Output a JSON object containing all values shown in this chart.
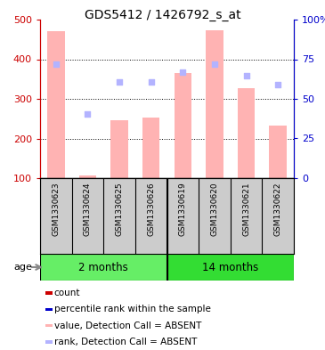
{
  "title": "GDS5412 / 1426792_s_at",
  "samples": [
    "GSM1330623",
    "GSM1330624",
    "GSM1330625",
    "GSM1330626",
    "GSM1330619",
    "GSM1330620",
    "GSM1330621",
    "GSM1330622"
  ],
  "groups": [
    {
      "label": "2 months",
      "indices": [
        0,
        1,
        2,
        3
      ],
      "color": "#66ee66"
    },
    {
      "label": "14 months",
      "indices": [
        4,
        5,
        6,
        7
      ],
      "color": "#33dd33"
    }
  ],
  "bar_values": [
    470,
    107,
    247,
    253,
    365,
    472,
    327,
    233
  ],
  "bar_color": "#ffb3b3",
  "rank_values": [
    388,
    262,
    343,
    342,
    368,
    388,
    358,
    335
  ],
  "rank_color": "#b3b3ff",
  "ylim_left": [
    100,
    500
  ],
  "ylim_right": [
    0,
    100
  ],
  "yticks_left": [
    100,
    200,
    300,
    400,
    500
  ],
  "ytick_labels_left": [
    "100",
    "200",
    "300",
    "400",
    "500"
  ],
  "yticks_right": [
    0,
    25,
    50,
    75,
    100
  ],
  "ytick_labels_right": [
    "0",
    "25",
    "50",
    "75",
    "100%"
  ],
  "left_axis_color": "#cc0000",
  "right_axis_color": "#0000cc",
  "background_color": "#ffffff",
  "sample_bg_color": "#cccccc",
  "legend_data": [
    {
      "color": "#cc0000",
      "label": "count"
    },
    {
      "color": "#0000cc",
      "label": "percentile rank within the sample"
    },
    {
      "color": "#ffb3b3",
      "label": "value, Detection Call = ABSENT"
    },
    {
      "color": "#b3b3ff",
      "label": "rank, Detection Call = ABSENT"
    }
  ],
  "bar_width": 0.55,
  "age_label": "age"
}
